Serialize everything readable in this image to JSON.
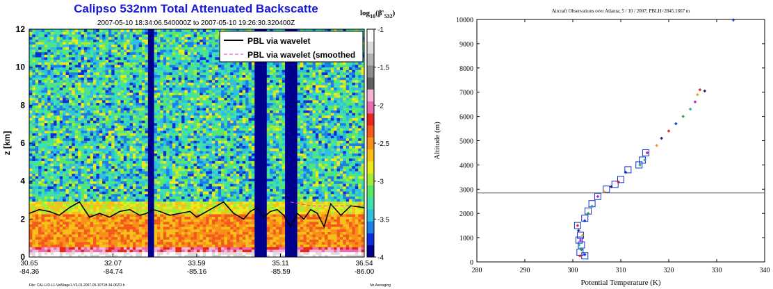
{
  "chart_data": [
    {
      "type": "heatmap",
      "title": "Calipso 532nm Total Attenuated Backscatte",
      "subtitle": "2007-05-10 18:34:06.540000Z to 2007-05-10 19:26:30.320400Z",
      "ylabel": "z [km]",
      "ylim": [
        0,
        12
      ],
      "yticks": [
        "0",
        "2",
        "4",
        "6",
        "8",
        "10",
        "12"
      ],
      "xticks_lat": [
        "30.65",
        "32.07",
        "33.59",
        "35.11",
        "36.54"
      ],
      "xticks_lon": [
        "-84.36",
        "-84.74",
        "-85.16",
        "-85.59",
        "-86.00"
      ],
      "colorbar": {
        "label_main": "log",
        "label_sub": "10",
        "label_rest": "(β'",
        "label_sub2": "532",
        "label_end": ")",
        "ticks": [
          "-1",
          "-1.5",
          "-2",
          "-2.5",
          "-3",
          "-3.5",
          "-4"
        ],
        "range": [
          -4,
          -1
        ]
      },
      "legend": {
        "placement": "top-right",
        "entries": [
          "PBL via wavelet",
          "PBL via wavelet (smoothed"
        ]
      },
      "series": [
        {
          "name": "PBL via wavelet",
          "x": [
            0,
            0.03,
            0.06,
            0.09,
            0.12,
            0.15,
            0.18,
            0.21,
            0.24,
            0.27,
            0.3,
            0.33,
            0.35,
            0.37,
            0.39,
            0.42,
            0.45,
            0.48,
            0.5,
            0.52,
            0.55,
            0.58,
            0.61,
            0.64,
            0.66,
            0.68,
            0.7,
            0.72,
            0.74,
            0.76,
            0.78,
            0.8,
            0.82,
            0.84,
            0.86,
            0.88,
            0.9,
            0.93,
            0.96,
            1.0
          ],
          "y": [
            2.3,
            2.5,
            2.4,
            2.2,
            2.6,
            2.9,
            2.1,
            2.3,
            2.1,
            2.4,
            2.5,
            2.2,
            2.3,
            2.5,
            2.4,
            2.2,
            2.3,
            2.4,
            2.1,
            2.3,
            2.6,
            2.9,
            2.3,
            2.0,
            2.4,
            2.6,
            2.1,
            2.4,
            2.5,
            2.2,
            1.6,
            2.3,
            2.0,
            2.5,
            2.3,
            1.6,
            2.8,
            2.2,
            2.7,
            2.6
          ]
        }
      ],
      "footer_left": "File: CAL-LID-L1-ValStage1-V3-01.2007-05-10T18-34-06ZD.h",
      "footer_right": "No Averaging"
    },
    {
      "type": "scatter",
      "title": "Aircraft Observations over Atlanta; 5 / 10 / 2007; PBLH=2845.1667 m",
      "xlabel": "Potential Temperature (K)",
      "ylabel": "Altitude (m)",
      "xlim": [
        280,
        340
      ],
      "ylim": [
        0,
        10000
      ],
      "xticks": [
        "280",
        "290",
        "300",
        "310",
        "320",
        "330",
        "340"
      ],
      "yticks": [
        "0",
        "1000",
        "2000",
        "3000",
        "4000",
        "5000",
        "6000",
        "7000",
        "8000",
        "9000",
        "10000"
      ],
      "pblh": 2845.1667,
      "points": [
        [
          301.5,
          250
        ],
        [
          302.5,
          300
        ],
        [
          301.8,
          500
        ],
        [
          301.3,
          700
        ],
        [
          301.6,
          900
        ],
        [
          302.0,
          1100
        ],
        [
          301.2,
          1300
        ],
        [
          301.0,
          1500
        ],
        [
          302.5,
          1700
        ],
        [
          303.2,
          2000
        ],
        [
          304.0,
          2300
        ],
        [
          305.2,
          2700
        ],
        [
          306.5,
          2900
        ],
        [
          308.0,
          3100
        ],
        [
          309.5,
          3300
        ],
        [
          311.0,
          3700
        ],
        [
          314.0,
          4000
        ],
        [
          315.0,
          4200
        ],
        [
          315.5,
          4500
        ],
        [
          317.5,
          4800
        ],
        [
          318.5,
          5100
        ],
        [
          320.0,
          5400
        ],
        [
          321.5,
          5700
        ],
        [
          323.0,
          6000
        ],
        [
          324.5,
          6300
        ],
        [
          325.5,
          6600
        ],
        [
          326.0,
          6900
        ],
        [
          327.5,
          7050
        ],
        [
          326.5,
          7100
        ],
        [
          333.5,
          9980
        ]
      ],
      "boxed_points": [
        [
          302.5,
          250
        ],
        [
          301.5,
          400
        ],
        [
          301.8,
          700
        ],
        [
          301.3,
          900
        ],
        [
          301.6,
          1100
        ],
        [
          301.0,
          1500
        ],
        [
          302.5,
          1800
        ],
        [
          303.2,
          2100
        ],
        [
          304.0,
          2400
        ],
        [
          305.2,
          2700
        ],
        [
          307.0,
          3000
        ],
        [
          308.8,
          3200
        ],
        [
          310.0,
          3400
        ],
        [
          311.5,
          3800
        ],
        [
          313.8,
          4000
        ],
        [
          314.5,
          4200
        ],
        [
          315.2,
          4500
        ]
      ]
    }
  ]
}
